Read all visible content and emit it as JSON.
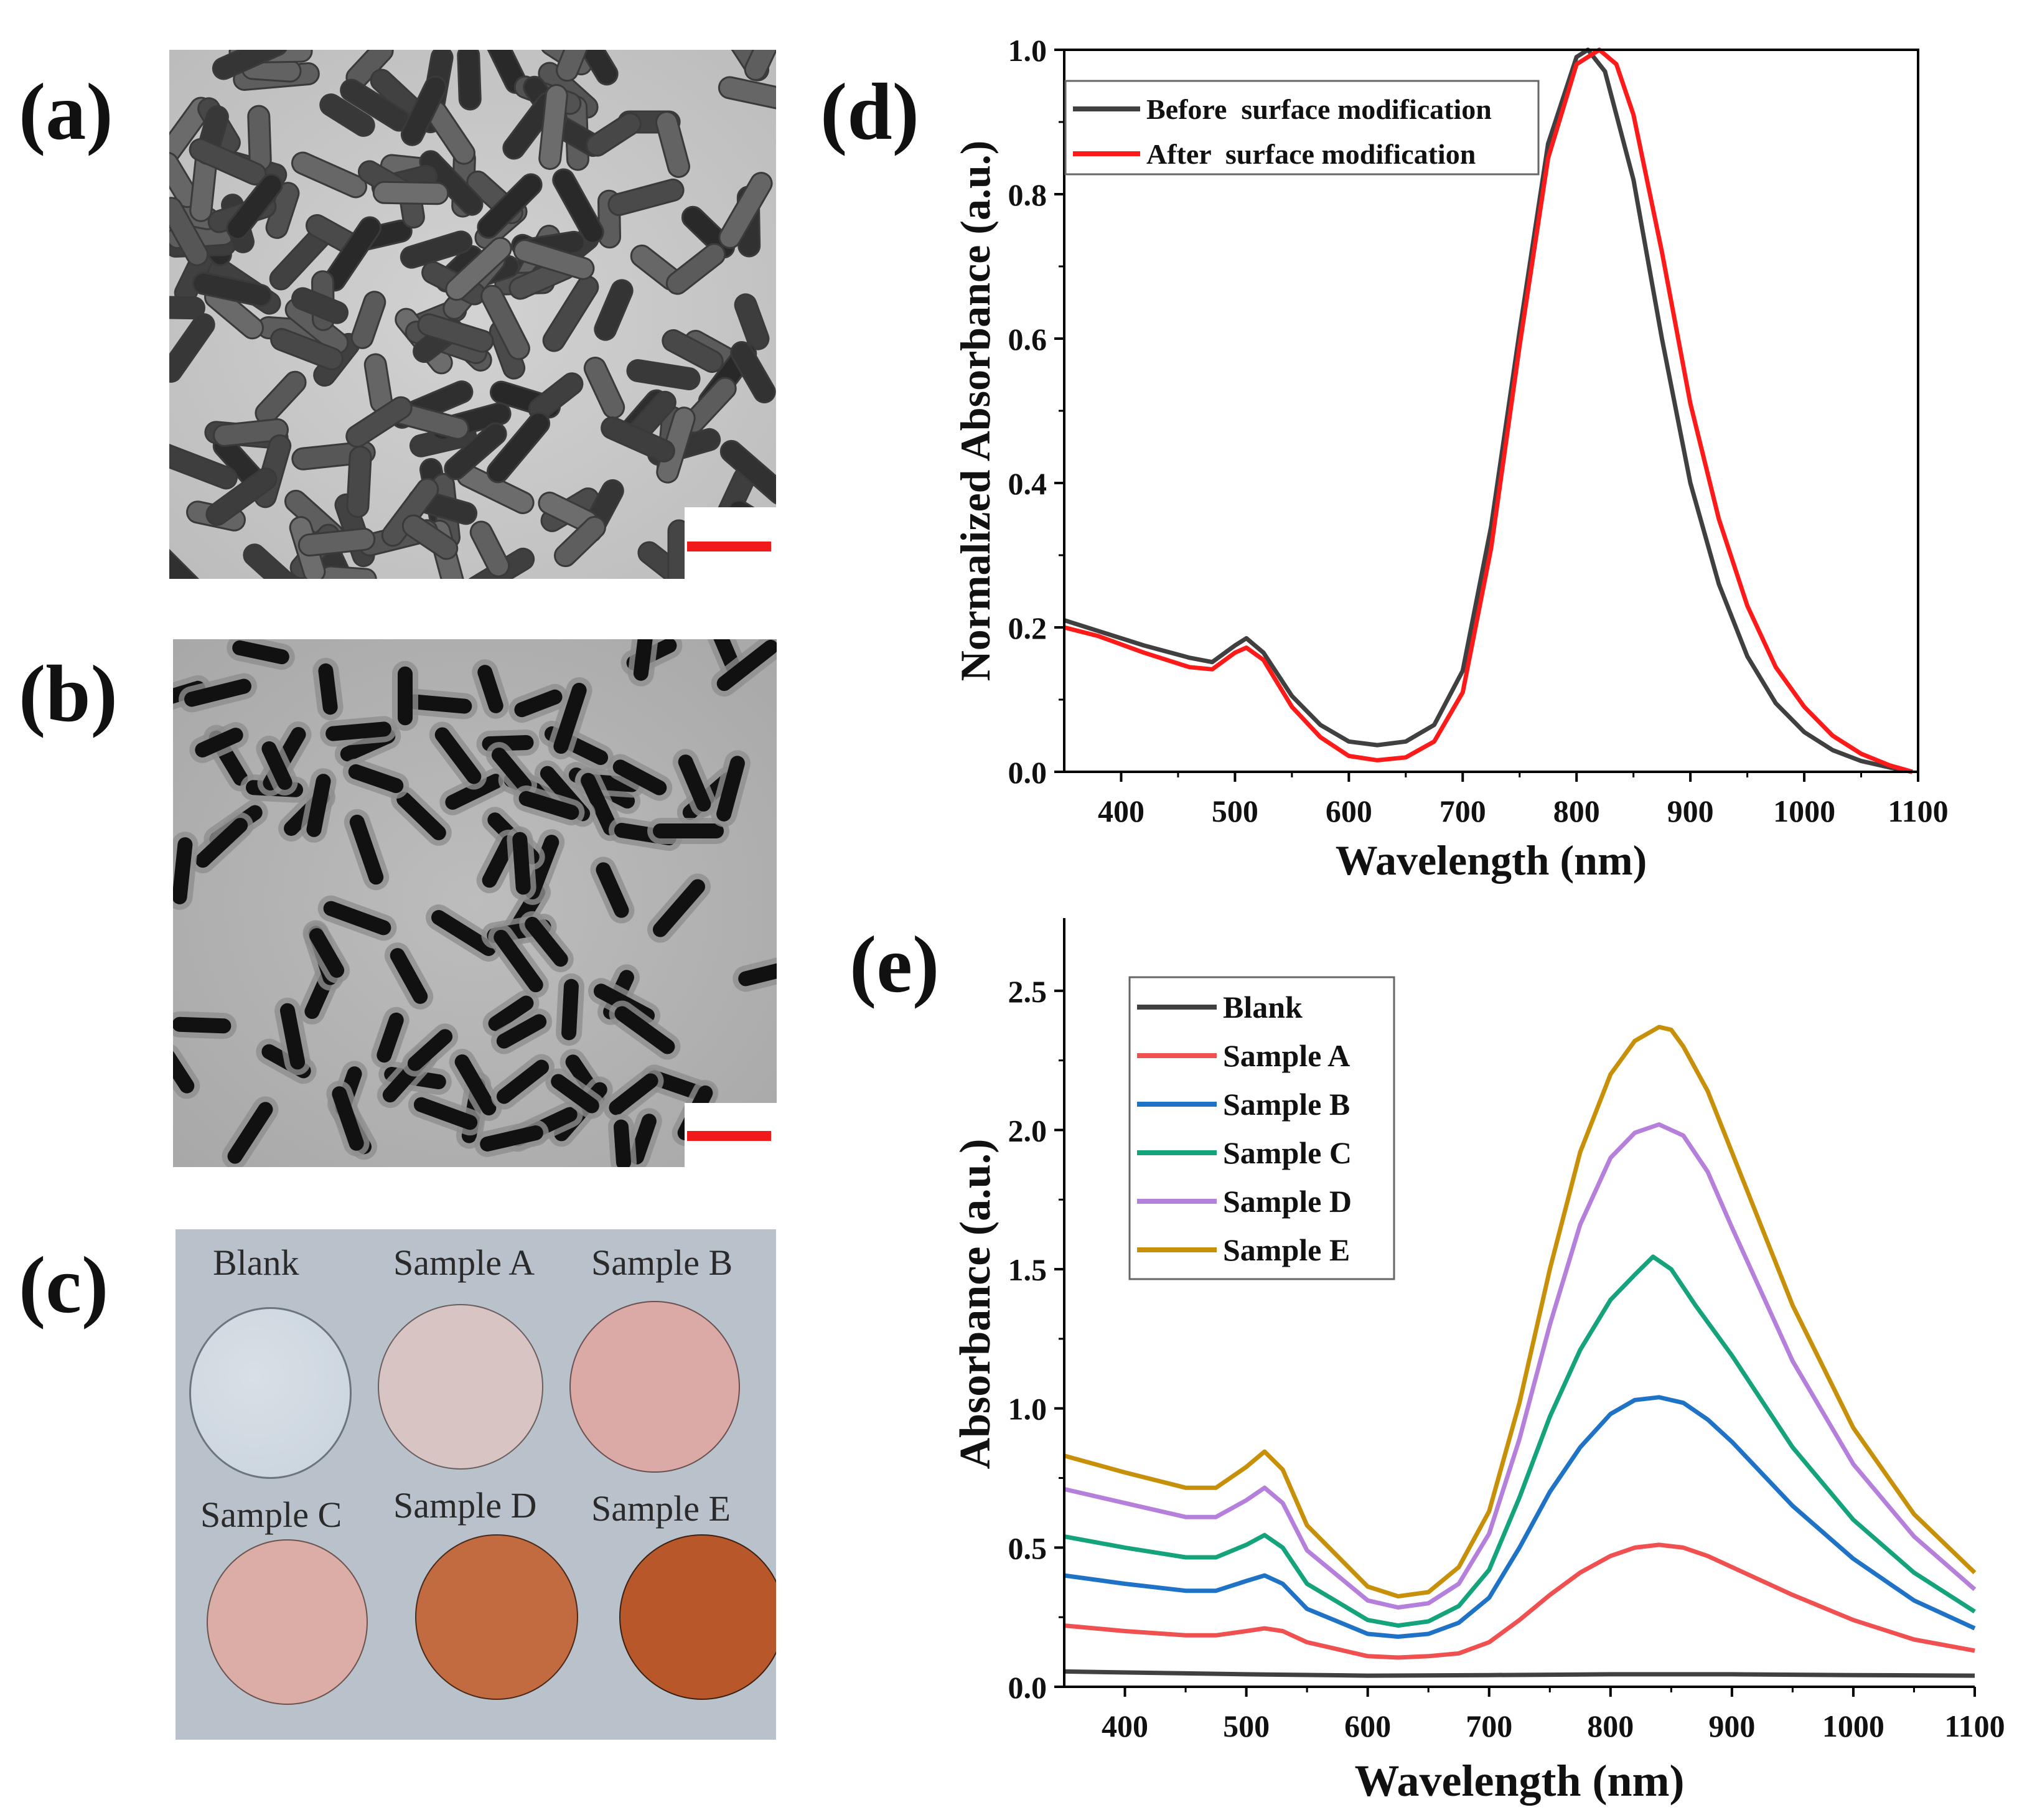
{
  "panels": {
    "a": {
      "label": "(a)"
    },
    "b": {
      "label": "(b)"
    },
    "c": {
      "label": "(c)",
      "discs": [
        {
          "label": "Blank",
          "color": "#c9d3dc"
        },
        {
          "label": "Sample A",
          "color": "#d8c4c2"
        },
        {
          "label": "Sample B",
          "color": "#dcaaa6"
        },
        {
          "label": "Sample C",
          "color": "#dcaca6"
        },
        {
          "label": "Sample D",
          "color": "#c26a40"
        },
        {
          "label": "Sample E",
          "color": "#b8582a"
        }
      ]
    },
    "d": {
      "label": "(d)"
    },
    "e": {
      "label": "(e)"
    }
  },
  "colors": {
    "scale_bar": "#f01a1a",
    "label_text": "#111111"
  },
  "chart_data": [
    {
      "id": "d",
      "type": "line",
      "xlabel": "Wavelength (nm)",
      "ylabel": "Normalized Absorbance (a.u.)",
      "xlim": [
        350,
        1100
      ],
      "ylim": [
        0,
        1.0
      ],
      "xticks": [
        400,
        500,
        600,
        700,
        800,
        900,
        1000,
        1100
      ],
      "yticks": [
        0.0,
        0.2,
        0.4,
        0.6,
        0.8,
        1.0
      ],
      "ytick_labels": [
        "0.0",
        "0.2",
        "0.4",
        "0.6",
        "0.8",
        "1.0"
      ],
      "legend_position": "top-left",
      "series": [
        {
          "name": "Before  surface modification",
          "color": "#404040",
          "x": [
            350,
            380,
            420,
            460,
            480,
            500,
            510,
            525,
            550,
            575,
            600,
            625,
            650,
            675,
            700,
            725,
            750,
            775,
            800,
            810,
            825,
            850,
            875,
            900,
            925,
            950,
            975,
            1000,
            1025,
            1050,
            1075,
            1095
          ],
          "y": [
            0.21,
            0.195,
            0.175,
            0.158,
            0.152,
            0.175,
            0.185,
            0.165,
            0.105,
            0.065,
            0.042,
            0.037,
            0.042,
            0.065,
            0.14,
            0.34,
            0.61,
            0.87,
            0.99,
            1.0,
            0.97,
            0.82,
            0.6,
            0.4,
            0.26,
            0.16,
            0.095,
            0.055,
            0.03,
            0.015,
            0.006,
            0.0
          ]
        },
        {
          "name": "After  surface modification",
          "color": "#ff1a1a",
          "x": [
            350,
            380,
            420,
            460,
            480,
            500,
            510,
            525,
            550,
            575,
            600,
            625,
            650,
            675,
            700,
            725,
            750,
            775,
            800,
            820,
            835,
            850,
            875,
            900,
            925,
            950,
            975,
            1000,
            1025,
            1050,
            1075,
            1095
          ],
          "y": [
            0.2,
            0.188,
            0.165,
            0.145,
            0.142,
            0.165,
            0.172,
            0.155,
            0.09,
            0.048,
            0.022,
            0.016,
            0.02,
            0.042,
            0.11,
            0.31,
            0.59,
            0.85,
            0.98,
            1.0,
            0.98,
            0.91,
            0.72,
            0.51,
            0.35,
            0.23,
            0.145,
            0.09,
            0.05,
            0.025,
            0.009,
            0.0
          ]
        }
      ]
    },
    {
      "id": "e",
      "type": "line",
      "xlabel": "Wavelength (nm)",
      "ylabel": "Absorbance (a.u.)",
      "xlim": [
        350,
        1100
      ],
      "ylim": [
        0,
        2.75
      ],
      "xticks": [
        400,
        500,
        600,
        700,
        800,
        900,
        1000,
        1100
      ],
      "yticks": [
        0.0,
        0.5,
        1.0,
        1.5,
        2.0,
        2.5
      ],
      "ytick_labels": [
        "0.0",
        "0.5",
        "1.0",
        "1.5",
        "2.0",
        "2.5"
      ],
      "legend_position": "top-left",
      "series": [
        {
          "name": "Blank",
          "color": "#404040",
          "x": [
            350,
            500,
            600,
            700,
            800,
            900,
            1000,
            1100
          ],
          "y": [
            0.055,
            0.045,
            0.04,
            0.042,
            0.045,
            0.045,
            0.042,
            0.04
          ]
        },
        {
          "name": "Sample A",
          "color": "#f0504f",
          "x": [
            350,
            400,
            450,
            475,
            500,
            515,
            530,
            550,
            600,
            625,
            650,
            675,
            700,
            725,
            750,
            775,
            800,
            820,
            840,
            860,
            880,
            900,
            950,
            1000,
            1050,
            1100
          ],
          "y": [
            0.22,
            0.2,
            0.185,
            0.185,
            0.2,
            0.21,
            0.2,
            0.16,
            0.11,
            0.105,
            0.11,
            0.12,
            0.16,
            0.24,
            0.33,
            0.41,
            0.47,
            0.5,
            0.51,
            0.5,
            0.47,
            0.43,
            0.33,
            0.24,
            0.17,
            0.13
          ]
        },
        {
          "name": "Sample B",
          "color": "#1f73c6",
          "x": [
            350,
            400,
            450,
            475,
            500,
            515,
            530,
            550,
            600,
            625,
            650,
            675,
            700,
            725,
            750,
            775,
            800,
            820,
            840,
            860,
            880,
            900,
            950,
            1000,
            1050,
            1100
          ],
          "y": [
            0.4,
            0.37,
            0.345,
            0.345,
            0.38,
            0.4,
            0.37,
            0.28,
            0.19,
            0.18,
            0.19,
            0.23,
            0.32,
            0.5,
            0.7,
            0.86,
            0.98,
            1.03,
            1.04,
            1.02,
            0.96,
            0.88,
            0.65,
            0.46,
            0.31,
            0.21
          ]
        },
        {
          "name": "Sample C",
          "color": "#14a37a",
          "x": [
            350,
            400,
            450,
            475,
            500,
            515,
            530,
            550,
            600,
            625,
            650,
            675,
            700,
            725,
            750,
            775,
            800,
            820,
            835,
            850,
            870,
            900,
            950,
            1000,
            1050,
            1100
          ],
          "y": [
            0.54,
            0.5,
            0.465,
            0.465,
            0.51,
            0.545,
            0.5,
            0.37,
            0.24,
            0.22,
            0.235,
            0.29,
            0.42,
            0.68,
            0.97,
            1.21,
            1.39,
            1.48,
            1.545,
            1.5,
            1.37,
            1.19,
            0.86,
            0.6,
            0.41,
            0.27
          ]
        },
        {
          "name": "Sample D",
          "color": "#b57fdc",
          "x": [
            350,
            400,
            450,
            475,
            500,
            515,
            530,
            550,
            600,
            625,
            650,
            675,
            700,
            725,
            750,
            775,
            800,
            820,
            840,
            860,
            880,
            900,
            950,
            1000,
            1050,
            1100
          ],
          "y": [
            0.71,
            0.66,
            0.61,
            0.61,
            0.67,
            0.715,
            0.66,
            0.49,
            0.31,
            0.285,
            0.3,
            0.37,
            0.55,
            0.89,
            1.3,
            1.66,
            1.9,
            1.99,
            2.02,
            1.98,
            1.85,
            1.65,
            1.17,
            0.8,
            0.54,
            0.35
          ]
        },
        {
          "name": "Sample E",
          "color": "#c89008",
          "x": [
            350,
            400,
            450,
            475,
            500,
            515,
            530,
            550,
            600,
            625,
            650,
            675,
            700,
            725,
            750,
            775,
            800,
            820,
            840,
            850,
            860,
            880,
            900,
            950,
            1000,
            1050,
            1100
          ],
          "y": [
            0.83,
            0.77,
            0.715,
            0.715,
            0.79,
            0.845,
            0.78,
            0.58,
            0.36,
            0.325,
            0.34,
            0.43,
            0.63,
            1.02,
            1.5,
            1.92,
            2.2,
            2.32,
            2.37,
            2.36,
            2.3,
            2.14,
            1.92,
            1.37,
            0.93,
            0.62,
            0.41
          ]
        }
      ]
    }
  ]
}
